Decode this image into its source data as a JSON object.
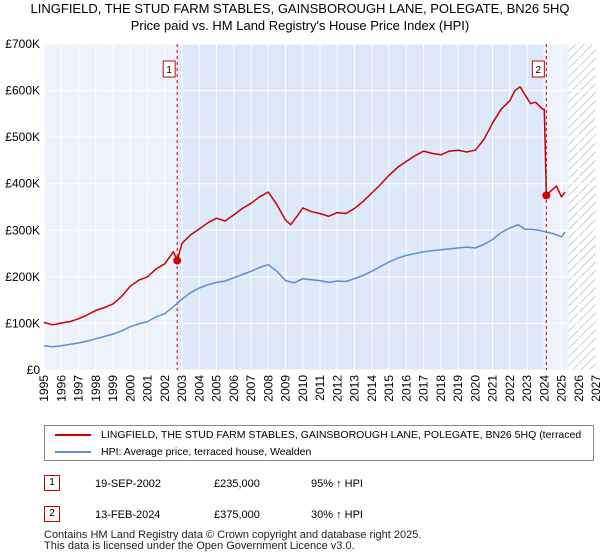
{
  "title": {
    "line1": "LINGFIELD, THE STUD FARM STABLES, GAINSBOROUGH LANE, POLEGATE, BN26 5HQ",
    "line2": "Price paid vs. HM Land Registry's House Price Index (HPI)"
  },
  "colors": {
    "property": "#cc0000",
    "hpi": "#5b8fd0",
    "shade": "#dde8f8",
    "grid": "#ffffff",
    "vline": "#cc0000"
  },
  "chart_data": {
    "type": "line",
    "xlim": [
      1995,
      2027
    ],
    "ylim": [
      0,
      700000
    ],
    "yticks": [
      0,
      100000,
      200000,
      300000,
      400000,
      500000,
      600000,
      700000
    ],
    "ytick_labels": [
      "£0",
      "£100K",
      "£200K",
      "£300K",
      "£400K",
      "£500K",
      "£600K",
      "£700K"
    ],
    "xtick_labels": [
      "1995",
      "1996",
      "1997",
      "1998",
      "1999",
      "2000",
      "2001",
      "2002",
      "2003",
      "2004",
      "2005",
      "2006",
      "2007",
      "2008",
      "2009",
      "2010",
      "2011",
      "2012",
      "2013",
      "2014",
      "2015",
      "2016",
      "2017",
      "2018",
      "2019",
      "2020",
      "2021",
      "2022",
      "2023",
      "2024",
      "2025",
      "2026",
      "2027"
    ],
    "shaded_ranges": [
      [
        2002.72,
        2024.12
      ]
    ],
    "hatched_range": [
      2025.4,
      2027
    ],
    "series": [
      {
        "name": "LINGFIELD, THE STUD FARM STABLES, GAINSBOROUGH LANE, POLEGATE, BN26 5HQ (terraced",
        "role": "property",
        "x": [
          1995.0,
          1995.5,
          1996.0,
          1996.5,
          1997.0,
          1997.5,
          1998.0,
          1998.5,
          1999.0,
          1999.5,
          2000.0,
          2000.5,
          2001.0,
          2001.5,
          2002.0,
          2002.5,
          2002.72,
          2003.0,
          2003.5,
          2004.0,
          2004.5,
          2005.0,
          2005.5,
          2006.0,
          2006.5,
          2007.0,
          2007.5,
          2008.0,
          2008.5,
          2009.0,
          2009.3,
          2009.7,
          2010.0,
          2010.5,
          2011.0,
          2011.5,
          2012.0,
          2012.5,
          2013.0,
          2013.5,
          2014.0,
          2014.5,
          2015.0,
          2015.5,
          2016.0,
          2016.5,
          2017.0,
          2017.5,
          2018.0,
          2018.5,
          2019.0,
          2019.5,
          2020.0,
          2020.5,
          2021.0,
          2021.5,
          2022.0,
          2022.3,
          2022.6,
          2022.9,
          2023.2,
          2023.5,
          2023.9,
          2024.0,
          2024.12,
          2024.4,
          2024.7,
          2025.0,
          2025.2
        ],
        "y": [
          102000,
          97000,
          101000,
          104000,
          110000,
          118000,
          128000,
          134000,
          142000,
          158000,
          180000,
          193000,
          200000,
          217000,
          228000,
          254000,
          235000,
          272000,
          290000,
          303000,
          316000,
          326000,
          320000,
          333000,
          347000,
          358000,
          372000,
          382000,
          355000,
          322000,
          312000,
          332000,
          348000,
          340000,
          336000,
          330000,
          338000,
          336000,
          347000,
          362000,
          380000,
          398000,
          418000,
          435000,
          448000,
          460000,
          470000,
          465000,
          462000,
          470000,
          472000,
          468000,
          472000,
          495000,
          530000,
          560000,
          578000,
          600000,
          608000,
          590000,
          572000,
          575000,
          560000,
          560000,
          375000,
          385000,
          395000,
          372000,
          382000
        ]
      },
      {
        "name": "HPI: Average price, terraced house, Wealden",
        "role": "hpi",
        "x": [
          1995.0,
          1995.5,
          1996.0,
          1996.5,
          1997.0,
          1997.5,
          1998.0,
          1998.5,
          1999.0,
          1999.5,
          2000.0,
          2000.5,
          2001.0,
          2001.5,
          2002.0,
          2002.5,
          2003.0,
          2003.5,
          2004.0,
          2004.5,
          2005.0,
          2005.5,
          2006.0,
          2006.5,
          2007.0,
          2007.5,
          2008.0,
          2008.5,
          2009.0,
          2009.5,
          2010.0,
          2010.5,
          2011.0,
          2011.5,
          2012.0,
          2012.5,
          2013.0,
          2013.5,
          2014.0,
          2014.5,
          2015.0,
          2015.5,
          2016.0,
          2016.5,
          2017.0,
          2017.5,
          2018.0,
          2018.5,
          2019.0,
          2019.5,
          2020.0,
          2020.5,
          2021.0,
          2021.5,
          2022.0,
          2022.5,
          2022.9,
          2023.3,
          2023.7,
          2024.0,
          2024.5,
          2025.0,
          2025.2
        ],
        "y": [
          52000,
          50000,
          52000,
          55000,
          58000,
          62000,
          67000,
          72000,
          77000,
          84000,
          93000,
          99000,
          104000,
          114000,
          121000,
          136000,
          152000,
          166000,
          176000,
          183000,
          188000,
          191000,
          198000,
          205000,
          212000,
          220000,
          226000,
          212000,
          192000,
          187000,
          196000,
          194000,
          192000,
          188000,
          191000,
          190000,
          196000,
          203000,
          212000,
          222000,
          232000,
          240000,
          246000,
          250000,
          254000,
          256000,
          258000,
          260000,
          262000,
          264000,
          262000,
          270000,
          280000,
          295000,
          305000,
          312000,
          302000,
          302000,
          300000,
          297000,
          293000,
          286000,
          296000
        ]
      }
    ],
    "markers": [
      {
        "label": "1",
        "x": 2002.72,
        "y": 235000
      },
      {
        "label": "2",
        "x": 2024.12,
        "y": 375000
      }
    ]
  },
  "legend": {
    "items": [
      {
        "label": "LINGFIELD, THE STUD FARM STABLES, GAINSBOROUGH LANE, POLEGATE, BN26 5HQ (terraced"
      },
      {
        "label": "HPI: Average price, terraced house, Wealden"
      }
    ]
  },
  "transactions": [
    {
      "num": "1",
      "date": "19-SEP-2002",
      "price": "£235,000",
      "hpi": "95% ↑ HPI"
    },
    {
      "num": "2",
      "date": "13-FEB-2024",
      "price": "£375,000",
      "hpi": "30% ↑ HPI"
    }
  ],
  "footer": {
    "line1": "Contains HM Land Registry data © Crown copyright and database right 2025.",
    "line2": "This data is licensed under the Open Government Licence v3.0."
  }
}
